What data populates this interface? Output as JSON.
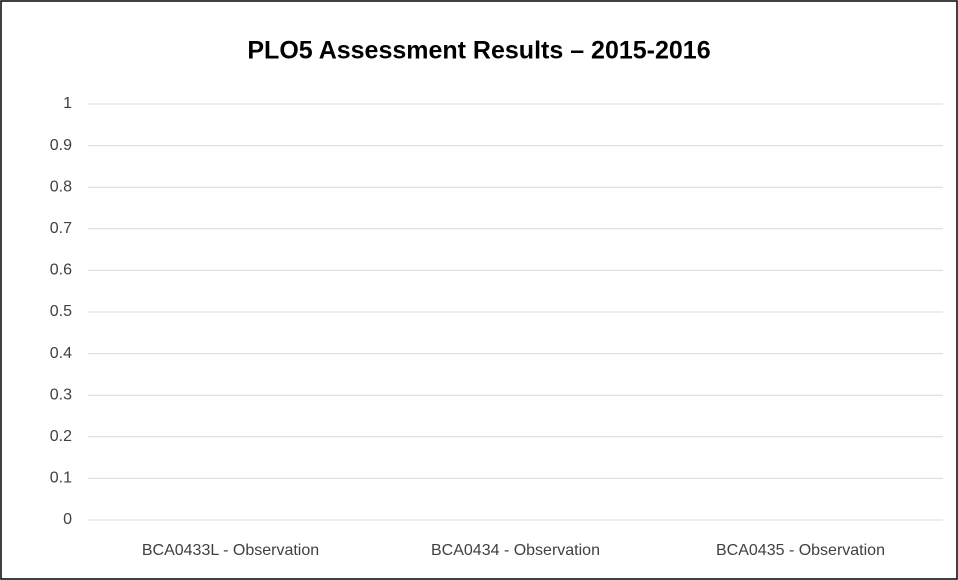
{
  "chart_data": {
    "type": "bar",
    "title": "PLO5 Assessment Results – 2015-2016",
    "categories": [
      "BCA0433L - Observation",
      "BCA0434 - Observation",
      "BCA0435 - Observation"
    ],
    "values": [
      null,
      null,
      null
    ],
    "color": "#4472c4",
    "ylim": [
      0,
      1
    ],
    "yticks": [
      0,
      0.1,
      0.2,
      0.3,
      0.4,
      0.5,
      0.6,
      0.7,
      0.8,
      0.9,
      1
    ],
    "grid": true
  }
}
